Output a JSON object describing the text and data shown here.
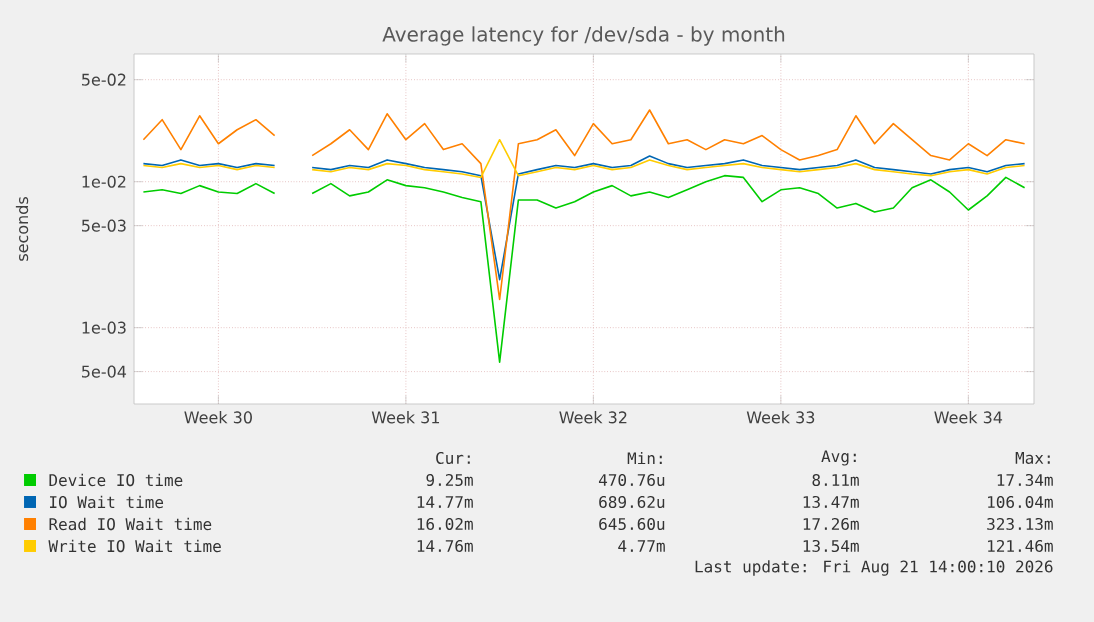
{
  "chart_data": {
    "type": "line",
    "title": "Average latency for /dev/sda - by month",
    "ylabel": "seconds",
    "categories": [
      null,
      null,
      null,
      null,
      "Week 30",
      null,
      null,
      null,
      null,
      null,
      null,
      null,
      null,
      null,
      "Week 31",
      null,
      null,
      null,
      null,
      null,
      null,
      null,
      null,
      null,
      "Week 32",
      null,
      null,
      null,
      null,
      null,
      null,
      null,
      null,
      null,
      "Week 33",
      null,
      null,
      null,
      null,
      null,
      null,
      null,
      null,
      null,
      "Week 34",
      null,
      null,
      null
    ],
    "series": [
      {
        "name": "Device IO time",
        "color": "#00cc00",
        "values": [
          0.0085,
          0.0088,
          0.0083,
          0.0094,
          0.0085,
          0.0083,
          0.0097,
          0.0083,
          null,
          0.0083,
          0.0097,
          0.008,
          0.0085,
          0.0103,
          0.0094,
          0.0091,
          0.0085,
          0.0078,
          0.0073,
          0.00058,
          0.0075,
          0.0075,
          0.0066,
          0.0073,
          0.0085,
          0.0094,
          0.008,
          0.0085,
          0.0078,
          0.0088,
          0.01,
          0.011,
          0.0107,
          0.0073,
          0.0088,
          0.0091,
          0.0083,
          0.0066,
          0.0071,
          0.0062,
          0.0066,
          0.0091,
          0.0103,
          0.0085,
          0.0064,
          0.008,
          0.0107,
          0.0091
        ]
      },
      {
        "name": "IO Wait time",
        "color": "#0066b3",
        "values": [
          0.0133,
          0.0129,
          0.0141,
          0.0129,
          0.0133,
          0.0125,
          0.0133,
          0.0129,
          null,
          0.0125,
          0.0121,
          0.0129,
          0.0125,
          0.0141,
          0.0133,
          0.0125,
          0.0121,
          0.0117,
          0.011,
          0.00213,
          0.0113,
          0.0121,
          0.0129,
          0.0125,
          0.0133,
          0.0125,
          0.0129,
          0.015,
          0.0133,
          0.0125,
          0.0129,
          0.0133,
          0.0141,
          0.0129,
          0.0125,
          0.0121,
          0.0125,
          0.0129,
          0.0141,
          0.0125,
          0.0121,
          0.0117,
          0.0113,
          0.0121,
          0.0125,
          0.0117,
          0.0129,
          0.0133
        ]
      },
      {
        "name": "Read IO Wait time",
        "color": "#ff8000",
        "values": [
          0.0194,
          0.0266,
          0.0166,
          0.0283,
          0.0182,
          0.0227,
          0.0266,
          0.0207,
          null,
          0.0151,
          0.0182,
          0.0227,
          0.0166,
          0.0292,
          0.0194,
          0.025,
          0.0166,
          0.0182,
          0.0133,
          0.00156,
          0.0182,
          0.0194,
          0.0227,
          0.0151,
          0.025,
          0.0182,
          0.0194,
          0.031,
          0.0182,
          0.0194,
          0.0166,
          0.0194,
          0.0182,
          0.0207,
          0.0166,
          0.0141,
          0.0151,
          0.0166,
          0.0283,
          0.0182,
          0.025,
          0.0194,
          0.0151,
          0.0141,
          0.0182,
          0.0151,
          0.0194,
          0.0182
        ]
      },
      {
        "name": "Write IO Wait time",
        "color": "#ffcc00",
        "values": [
          0.0129,
          0.0125,
          0.0133,
          0.0125,
          0.0129,
          0.0121,
          0.0129,
          0.0125,
          null,
          0.0121,
          0.0117,
          0.0125,
          0.0121,
          0.0133,
          0.0129,
          0.0121,
          0.0117,
          0.0113,
          0.0107,
          0.0194,
          0.011,
          0.0117,
          0.0125,
          0.0121,
          0.0129,
          0.0121,
          0.0125,
          0.0141,
          0.0129,
          0.0121,
          0.0125,
          0.0129,
          0.0133,
          0.0125,
          0.0121,
          0.0117,
          0.0121,
          0.0125,
          0.0133,
          0.0121,
          0.0117,
          0.0113,
          0.011,
          0.0117,
          0.0121,
          0.0113,
          0.0125,
          0.0129
        ]
      }
    ],
    "ylim": [
      0.0003,
      0.075
    ],
    "yticks": [
      {
        "value": 0.0005,
        "label": "5e-04"
      },
      {
        "value": 0.001,
        "label": "1e-03"
      },
      {
        "value": 0.005,
        "label": "5e-03"
      },
      {
        "value": 0.01,
        "label": "1e-02"
      },
      {
        "value": 0.05,
        "label": "5e-02"
      }
    ],
    "log": "y",
    "grid": true,
    "legend": "bottom",
    "marker": "none",
    "line_style": "solid",
    "annotations": [
      "Cur:",
      "Min:",
      "Avg:",
      "Max:",
      "9.25m",
      "470.76u",
      "8.11m",
      "17.34m",
      "14.77m",
      "689.62u",
      "13.47m",
      "106.04m",
      "16.02m",
      "645.60u",
      "17.26m",
      "323.13m",
      "14.76m",
      "4.77m",
      "13.54m",
      "121.46m",
      "Last update: Fri Aug 21 14:00:10 2026"
    ]
  }
}
